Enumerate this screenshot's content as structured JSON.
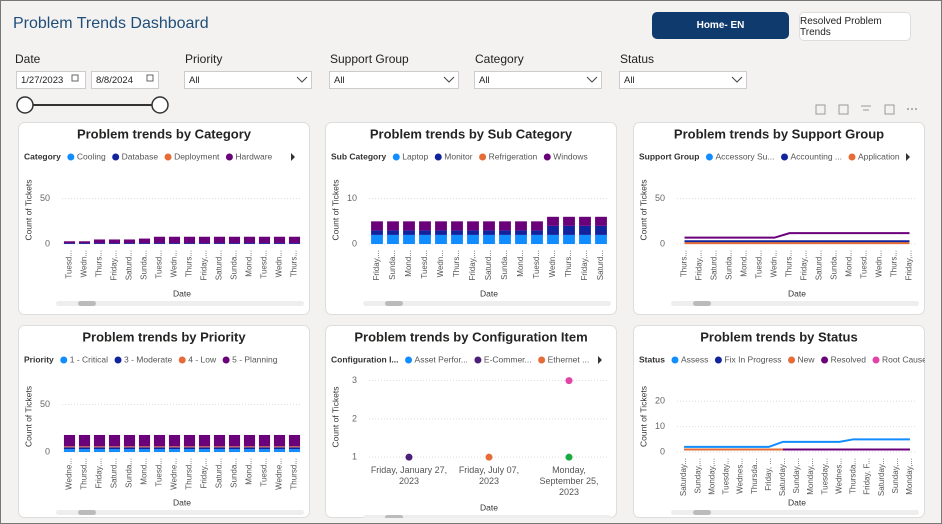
{
  "header": {
    "title": "Problem Trends Dashboard",
    "buttons": [
      "Home- EN",
      "Resolved Problem Trends"
    ]
  },
  "filters": [
    {
      "label": "Date",
      "values": [
        "1/27/2023",
        "8/8/2024"
      ]
    },
    {
      "label": "Priority",
      "value": "All"
    },
    {
      "label": "Support Group",
      "value": "All"
    },
    {
      "label": "Category",
      "value": "All"
    },
    {
      "label": "Status",
      "value": "All"
    }
  ],
  "chart_data": [
    {
      "type": "bar",
      "stacked": true,
      "title": "Problem trends by Category",
      "legend_title": "Category",
      "y_label": "Count of Tickets",
      "x_label": "Date",
      "grid": true,
      "ylim": [
        0,
        75
      ],
      "yticks": [
        0,
        50
      ],
      "categories": [
        "Tuesd...",
        "Wedn...",
        "Thurs...",
        "Friday,...",
        "Saturd...",
        "Sunda...",
        "Tuesd...",
        "Wedn...",
        "Thurs...",
        "Friday,...",
        "Saturd...",
        "Sunda...",
        "Mond...",
        "Tuesd...",
        "Wedn...",
        "Thurs..."
      ],
      "series": [
        {
          "name": "Cooling",
          "color": "#118dff",
          "values": [
            0,
            0,
            0,
            0,
            0,
            0,
            0,
            0,
            0,
            0,
            0,
            0,
            0,
            0,
            0,
            0
          ]
        },
        {
          "name": "Database",
          "color": "#12239e",
          "values": [
            1,
            1,
            1,
            1,
            1,
            1,
            1,
            1,
            1,
            1,
            1,
            1,
            1,
            1,
            1,
            1
          ]
        },
        {
          "name": "Deployment",
          "color": "#e66c37",
          "values": [
            0,
            0,
            0,
            0,
            0,
            0,
            0,
            0,
            0,
            0,
            0,
            0,
            0,
            0,
            0,
            0
          ]
        },
        {
          "name": "Hardware",
          "color": "#6b007b",
          "values": [
            2,
            2,
            4,
            4,
            4,
            5,
            7,
            7,
            7,
            7,
            7,
            7,
            7,
            7,
            7,
            7
          ]
        }
      ]
    },
    {
      "type": "bar",
      "stacked": true,
      "title": "Problem trends by Sub Category",
      "legend_title": "Sub Category",
      "y_label": "Count of Tickets",
      "x_label": "Date",
      "grid": true,
      "ylim": [
        0,
        15
      ],
      "yticks": [
        0,
        10
      ],
      "categories": [
        "Friday,...",
        "Sunda...",
        "Mond...",
        "Tuesd...",
        "Wedn...",
        "Thurs...",
        "Friday,...",
        "Saturd...",
        "Sunda...",
        "Mond...",
        "Tuesd...",
        "Wedn...",
        "Thurs...",
        "Friday,...",
        "Saturd..."
      ],
      "series": [
        {
          "name": "Laptop",
          "color": "#118dff",
          "values": [
            2,
            2,
            2,
            2,
            2,
            2,
            2,
            2,
            2,
            2,
            2,
            2,
            2,
            2,
            2
          ]
        },
        {
          "name": "Monitor",
          "color": "#12239e",
          "values": [
            1,
            1,
            1,
            1,
            1,
            1,
            1,
            1,
            1,
            1,
            1,
            2,
            2,
            2,
            2
          ]
        },
        {
          "name": "Refrigeration",
          "color": "#e66c37",
          "values": [
            0,
            0,
            0,
            0,
            0,
            0,
            0,
            0,
            0,
            0,
            0,
            0,
            0,
            0,
            0
          ]
        },
        {
          "name": "Windows",
          "color": "#6b007b",
          "values": [
            2,
            2,
            2,
            2,
            2,
            2,
            2,
            2,
            2,
            2,
            2,
            2,
            2,
            2,
            2
          ]
        }
      ]
    },
    {
      "type": "line",
      "title": "Problem trends by Support Group",
      "legend_title": "Support Group",
      "y_label": "Count of Tickets",
      "x_label": "Date",
      "grid": true,
      "ylim": [
        0,
        75
      ],
      "yticks": [
        0,
        50
      ],
      "categories": [
        "Thurs...",
        "Friday,...",
        "Saturd...",
        "Sunda...",
        "Mond...",
        "Tuesd...",
        "Wedn...",
        "Thurs...",
        "Friday,...",
        "Saturd...",
        "Sunda...",
        "Mond...",
        "Tuesd...",
        "Wedn...",
        "Thurs...",
        "Friday,..."
      ],
      "series": [
        {
          "name": "Accessory Su...",
          "color": "#118dff",
          "values": [
            2,
            2,
            2,
            2,
            2,
            2,
            2,
            2,
            2,
            2,
            2,
            2,
            2,
            2,
            2,
            2
          ]
        },
        {
          "name": "Accounting ...",
          "color": "#12239e",
          "values": [
            3,
            3,
            3,
            3,
            3,
            3,
            3,
            3,
            3,
            3,
            3,
            3,
            3,
            3,
            3,
            3
          ]
        },
        {
          "name": "Application",
          "color": "#e66c37",
          "values": [
            1,
            1,
            1,
            1,
            1,
            1,
            1,
            1,
            1,
            1,
            1,
            1,
            1,
            1,
            1,
            1
          ]
        },
        {
          "color": "#6b007b",
          "values": [
            7,
            7,
            7,
            7,
            7,
            7,
            7,
            12,
            12,
            12,
            12,
            12,
            12,
            12,
            12,
            12
          ]
        }
      ]
    },
    {
      "type": "bar",
      "stacked": true,
      "title": "Problem trends by Priority",
      "legend_title": "Priority",
      "y_label": "Count of Tickets",
      "x_label": "Date",
      "grid": true,
      "ylim": [
        0,
        75
      ],
      "yticks": [
        0,
        50
      ],
      "categories": [
        "Wedne...",
        "Thursd...",
        "Friday,...",
        "Saturd...",
        "Sunda...",
        "Mond...",
        "Tuesd...",
        "Wedne...",
        "Thursd...",
        "Friday,...",
        "Saturd...",
        "Sunda...",
        "Mond...",
        "Tuesd...",
        "Wedne...",
        "Thursd..."
      ],
      "series": [
        {
          "name": "1 - Critical",
          "color": "#118dff",
          "values": [
            3,
            3,
            3,
            3,
            3,
            3,
            3,
            3,
            3,
            3,
            3,
            3,
            3,
            3,
            3,
            3
          ]
        },
        {
          "name": "3 - Moderate",
          "color": "#12239e",
          "values": [
            2,
            2,
            2,
            2,
            2,
            2,
            2,
            2,
            2,
            2,
            2,
            2,
            2,
            2,
            2,
            2
          ]
        },
        {
          "name": "4 - Low",
          "color": "#e66c37",
          "values": [
            1,
            1,
            1,
            1,
            1,
            1,
            1,
            1,
            1,
            1,
            1,
            1,
            1,
            1,
            1,
            1
          ]
        },
        {
          "name": "5 - Planning",
          "color": "#6b007b",
          "values": [
            12,
            12,
            12,
            12,
            12,
            12,
            12,
            12,
            12,
            12,
            12,
            12,
            12,
            12,
            12,
            12
          ]
        }
      ]
    },
    {
      "type": "scatter",
      "title": "Problem trends by Configuration Item",
      "legend_title": "Configuration I...",
      "y_label": "Count of Tickets",
      "x_label": "Date",
      "grid": true,
      "ylim": [
        0.9,
        3.2
      ],
      "yticks": [
        1,
        2,
        3
      ],
      "categories": [
        "Friday, January 27, 2023",
        "Friday, July 07, 2023",
        "Monday, September 25, 2023"
      ],
      "series": [
        {
          "name": "Asset Perfor...",
          "color": "#118dff",
          "values": [
            null,
            null,
            null
          ]
        },
        {
          "name": "E-Commer...",
          "color": "#4b1f7a",
          "values": [
            1,
            null,
            null
          ]
        },
        {
          "name": "Ethernet ...",
          "color": "#e66c37",
          "values": [
            null,
            1,
            null
          ]
        },
        {
          "color": "#1aab40",
          "values": [
            null,
            null,
            1
          ]
        },
        {
          "color": "#e044a7",
          "values": [
            null,
            null,
            3
          ]
        }
      ]
    },
    {
      "type": "line",
      "title": "Problem trends by Status",
      "legend_title": "Status",
      "y_label": "Count of Tickets",
      "x_label": "Date",
      "grid": true,
      "ylim": [
        0,
        28
      ],
      "yticks": [
        0,
        10,
        20
      ],
      "categories": [
        "Saturday...",
        "Sunday,...",
        "Monday,...",
        "Tuesday...",
        "Wednes...",
        "Thursda...",
        "Friday, ...",
        "Saturday...",
        "Sunday,...",
        "Monday,...",
        "Tuesday...",
        "Wednes...",
        "Thursda...",
        "Friday, F...",
        "Saturday...",
        "Sunday,...",
        "Monday,..."
      ],
      "series": [
        {
          "name": "Assess",
          "color": "#118dff",
          "values": [
            2,
            2,
            2,
            2,
            2,
            2,
            2,
            4,
            4,
            4,
            4,
            4,
            5,
            5,
            5,
            5,
            5
          ]
        },
        {
          "name": "Fix In Progress",
          "color": "#12239e",
          "values": [
            1,
            1,
            1,
            1,
            1,
            1,
            1,
            1,
            1,
            1,
            1,
            1,
            1,
            1,
            1,
            1,
            1
          ]
        },
        {
          "name": "New",
          "color": "#e66c37",
          "values": [
            1,
            1,
            1,
            1,
            1,
            1,
            1,
            1,
            1,
            1,
            1,
            1,
            1,
            1,
            1,
            1,
            1
          ]
        },
        {
          "name": "Resolved",
          "color": "#6b007b",
          "values": [
            null,
            null,
            null,
            null,
            null,
            null,
            null,
            1,
            1,
            1,
            1,
            1,
            1,
            1,
            1,
            1,
            1
          ]
        },
        {
          "name": "Root Cause ...",
          "color": "#e044a7",
          "values": [
            null,
            null,
            null,
            null,
            null,
            null,
            null,
            null,
            null,
            null,
            null,
            null,
            null,
            null,
            null,
            null,
            null
          ]
        }
      ]
    }
  ]
}
